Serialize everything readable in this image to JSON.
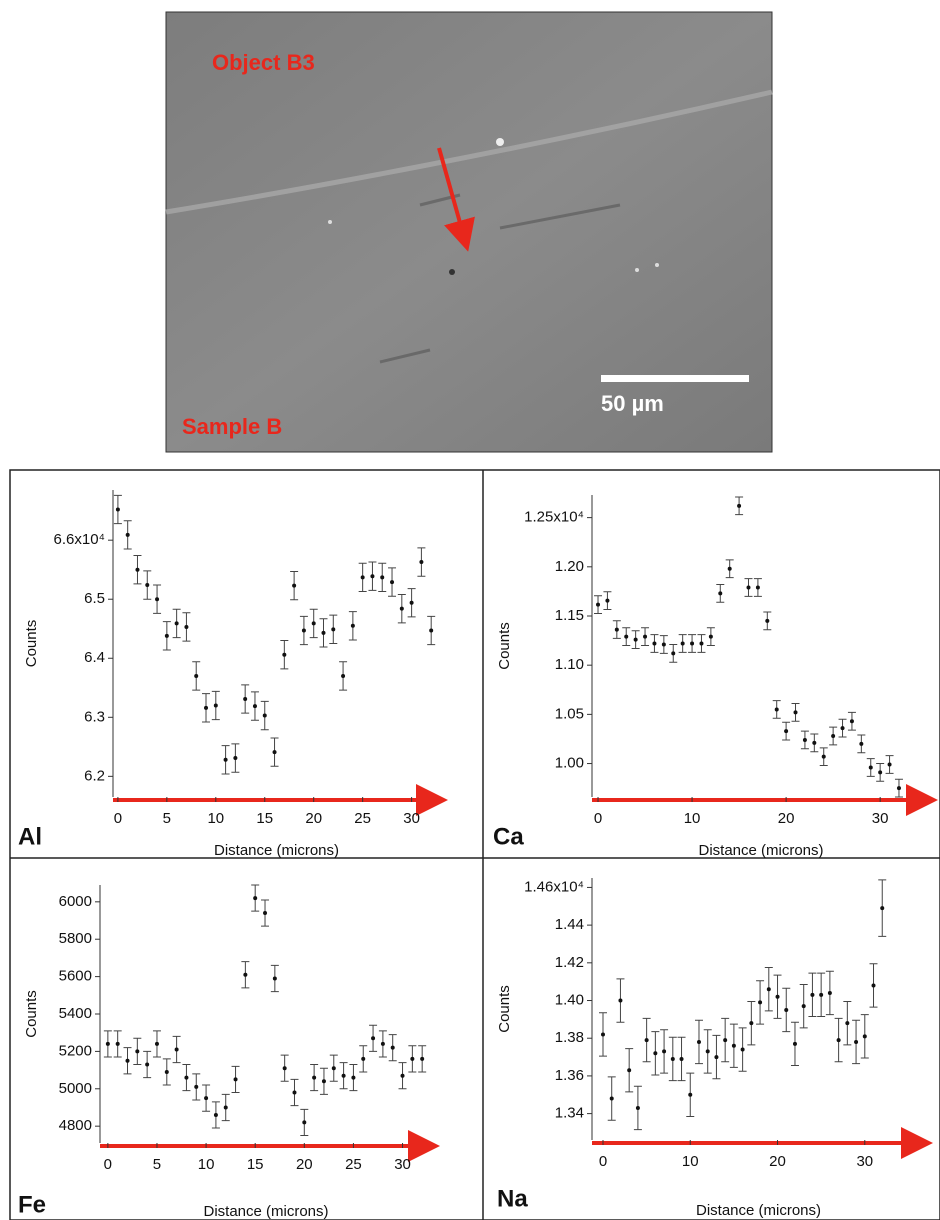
{
  "image": {
    "labels": [
      "Object B3",
      "Sample B"
    ],
    "scale_bar": "50 µm"
  },
  "chart_data": [
    {
      "type": "scatter",
      "title": "Al",
      "x_label": "Distance (microns)",
      "y_label": "Counts",
      "color": "#111111",
      "x": [
        0,
        1,
        2,
        3,
        4,
        5,
        6,
        7,
        8,
        9,
        10,
        11,
        12,
        13,
        14,
        15,
        16,
        17,
        18,
        19,
        20,
        21,
        22,
        23,
        24,
        25,
        26,
        27,
        28,
        29,
        30,
        31,
        32
      ],
      "values": [
        66520,
        66090,
        65500,
        65240,
        65000,
        64380,
        64590,
        64530,
        63700,
        63160,
        63200,
        62280,
        62310,
        63310,
        63190,
        63030,
        62410,
        64060,
        65230,
        64470,
        64590,
        64430,
        64490,
        63700,
        64550,
        65370,
        65390,
        65370,
        65290,
        64840,
        64940,
        65630,
        64470
      ],
      "errors": [
        240,
        240,
        240,
        240,
        240,
        240,
        240,
        240,
        240,
        240,
        240,
        240,
        240,
        240,
        240,
        240,
        240,
        240,
        240,
        240,
        240,
        240,
        240,
        240,
        240,
        240,
        240,
        240,
        240,
        240,
        240,
        240,
        240
      ],
      "xlim": [
        -0.5,
        32.9
      ],
      "xticks": [
        0,
        5,
        10,
        15,
        20,
        25,
        30
      ],
      "ylim": [
        61650,
        66850
      ],
      "yticks": [
        {
          "value": 66000,
          "label": "6.6x10⁴"
        },
        {
          "value": 65000,
          "label": "6.5"
        },
        {
          "value": 64000,
          "label": "6.4"
        },
        {
          "value": 63000,
          "label": "6.3"
        },
        {
          "value": 62000,
          "label": "6.2"
        }
      ]
    },
    {
      "type": "scatter",
      "title": "Ca",
      "x_label": "Distance (microns)",
      "y_label": "Counts",
      "color": "#111111",
      "x": [
        0,
        1,
        2,
        3,
        4,
        5,
        6,
        7,
        8,
        9,
        10,
        11,
        12,
        13,
        14,
        15,
        16,
        17,
        18,
        19,
        20,
        21,
        22,
        23,
        24,
        25,
        26,
        27,
        28,
        29,
        30,
        31,
        32
      ],
      "values": [
        11616,
        11656,
        11362,
        11290,
        11260,
        11290,
        11220,
        11210,
        11120,
        11220,
        11220,
        11220,
        11290,
        11730,
        11980,
        12620,
        11790,
        11790,
        11450,
        10550,
        10330,
        10520,
        10240,
        10210,
        10070,
        10280,
        10360,
        10430,
        10200,
        9960,
        9910,
        9990,
        9750
      ],
      "errors": [
        90,
        90,
        90,
        90,
        90,
        90,
        90,
        90,
        90,
        90,
        90,
        90,
        90,
        90,
        90,
        90,
        90,
        90,
        90,
        90,
        90,
        90,
        90,
        90,
        90,
        90,
        90,
        90,
        90,
        90,
        90,
        90,
        90
      ],
      "xlim": [
        -0.64,
        35.3
      ],
      "xticks": [
        0,
        10,
        20,
        30
      ],
      "ylim": [
        9660,
        12730
      ],
      "yticks": [
        {
          "value": 12500,
          "label": "1.25x10⁴"
        },
        {
          "value": 12000,
          "label": "1.20"
        },
        {
          "value": 11500,
          "label": "1.15"
        },
        {
          "value": 11000,
          "label": "1.10"
        },
        {
          "value": 10500,
          "label": "1.05"
        },
        {
          "value": 10000,
          "label": "1.00"
        }
      ]
    },
    {
      "type": "scatter",
      "title": "Fe",
      "x_label": "Distance (microns)",
      "y_label": "Counts",
      "color": "#111111",
      "x": [
        0,
        1,
        2,
        3,
        4,
        5,
        6,
        7,
        8,
        9,
        10,
        11,
        12,
        13,
        14,
        15,
        16,
        17,
        18,
        19,
        20,
        21,
        22,
        23,
        24,
        25,
        26,
        27,
        28,
        29,
        30,
        31,
        32
      ],
      "values": [
        5240,
        5240,
        5150,
        5200,
        5130,
        5240,
        5090,
        5210,
        5060,
        5010,
        4950,
        4860,
        4900,
        5050,
        5610,
        6020,
        5940,
        5590,
        5110,
        4980,
        4820,
        5060,
        5040,
        5110,
        5070,
        5060,
        5160,
        5270,
        5240,
        5220,
        5070,
        5160,
        5160
      ],
      "errors": [
        70,
        70,
        70,
        70,
        70,
        70,
        70,
        70,
        70,
        70,
        70,
        70,
        70,
        70,
        70,
        70,
        70,
        70,
        70,
        70,
        70,
        70,
        70,
        70,
        70,
        70,
        70,
        70,
        70,
        70,
        70,
        70,
        70
      ],
      "xlim": [
        -0.8,
        33
      ],
      "xticks": [
        0,
        5,
        10,
        15,
        20,
        25,
        30
      ],
      "ylim": [
        4710,
        6090
      ],
      "yticks": [
        6000,
        5800,
        5600,
        5400,
        5200,
        5000,
        4800
      ]
    },
    {
      "type": "scatter",
      "title": "Na",
      "x_label": "Distance (microns)",
      "y_label": "Counts",
      "color": "#111111",
      "x": [
        0,
        1,
        2,
        3,
        4,
        5,
        6,
        7,
        8,
        9,
        10,
        11,
        12,
        13,
        14,
        15,
        16,
        17,
        18,
        19,
        20,
        21,
        22,
        23,
        24,
        25,
        26,
        27,
        28,
        29,
        30,
        31,
        32
      ],
      "values": [
        13820,
        13480,
        14000,
        13630,
        13430,
        13790,
        13720,
        13730,
        13690,
        13690,
        13500,
        13780,
        13730,
        13700,
        13790,
        13760,
        13740,
        13880,
        13990,
        14060,
        14020,
        13950,
        13770,
        13970,
        14030,
        14030,
        14040,
        13790,
        13880,
        13780,
        13810,
        14080,
        14490
      ],
      "errors": [
        115,
        115,
        115,
        115,
        115,
        115,
        115,
        115,
        115,
        115,
        115,
        115,
        115,
        115,
        115,
        115,
        115,
        115,
        115,
        115,
        115,
        115,
        115,
        115,
        115,
        115,
        115,
        115,
        115,
        115,
        115,
        115,
        150
      ],
      "xlim": [
        -1.26,
        36.9
      ],
      "xticks": [
        0,
        10,
        20,
        30
      ],
      "ylim": [
        13260,
        14650
      ],
      "yticks": [
        {
          "value": 14600,
          "label": "1.46x10⁴"
        },
        {
          "value": 14400,
          "label": "1.44"
        },
        {
          "value": 14200,
          "label": "1.42"
        },
        {
          "value": 14000,
          "label": "1.40"
        },
        {
          "value": 13800,
          "label": "1.38"
        },
        {
          "value": 13600,
          "label": "1.36"
        },
        {
          "value": 13400,
          "label": "1.34"
        }
      ]
    }
  ]
}
